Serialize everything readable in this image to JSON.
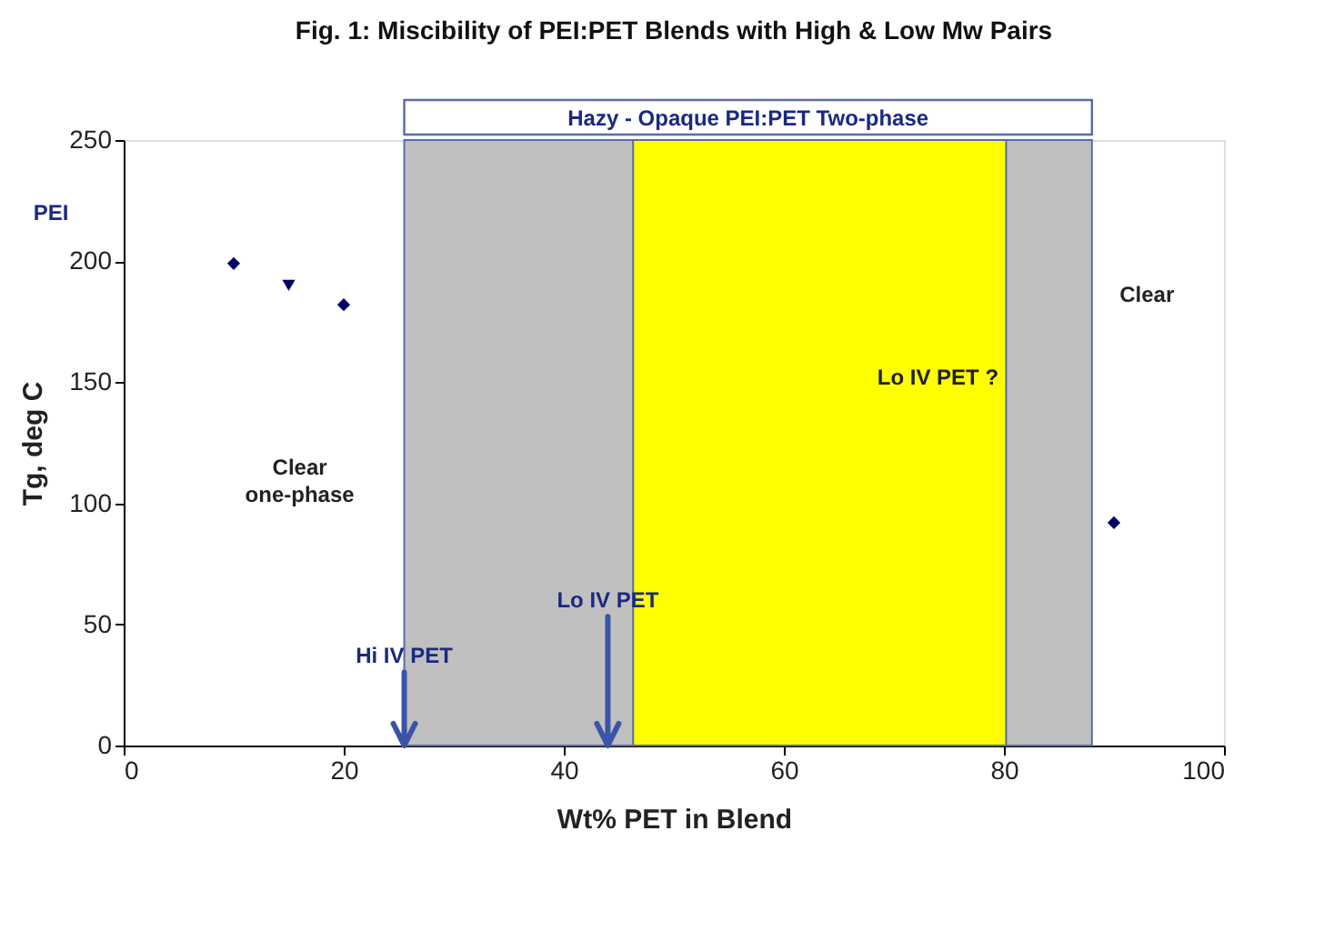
{
  "chart_data": {
    "type": "scatter",
    "title": "Fig. 1: Miscibility of PEI:PET Blends with High & Low Mw Pairs",
    "xlabel": "Wt% PET in Blend",
    "ylabel": "Tg, deg C",
    "xlim": [
      0,
      100
    ],
    "xticks": [
      0,
      20,
      40,
      60,
      80,
      100
    ],
    "ylim": [
      0,
      250
    ],
    "yticks": [
      0,
      50,
      100,
      150,
      200,
      250
    ],
    "grid": false,
    "series": [
      {
        "color": "#000066",
        "marker": "diamond",
        "x": [
          10,
          20,
          90
        ],
        "values": [
          199,
          182,
          92
        ]
      },
      {
        "color": "#000066",
        "marker": "triangle",
        "x": [
          15
        ],
        "values": [
          190
        ]
      }
    ],
    "bands": [
      {
        "axis": "x",
        "from": 25.5,
        "to": 88,
        "label": "Hazy - Opaque PEI:PET Two-phase",
        "color": "#c0c0c0"
      },
      {
        "axis": "x",
        "from": 46.3,
        "to": 80.2,
        "color": "#ffff00"
      }
    ],
    "annotations": [
      "PEI",
      "Hi IV PET",
      "Lo IV PET",
      "Clear\none-phase",
      "Clear",
      "Lo IV PET ?"
    ]
  }
}
